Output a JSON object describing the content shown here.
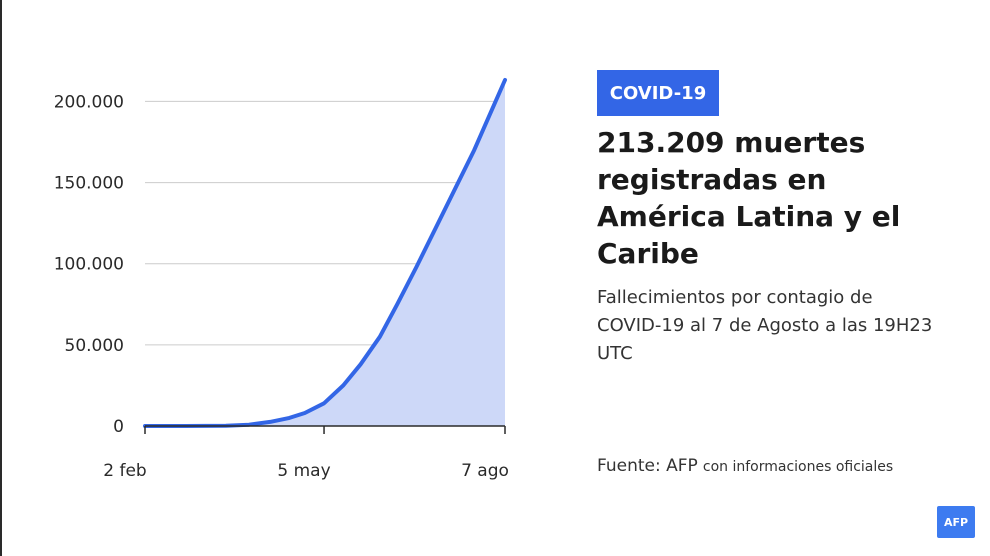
{
  "badge": "COVID-19",
  "headline": "213.209 muertes registradas en América Latina y el Caribe",
  "subtitle": "Fallecimientos por contagio de COVID-19 al 7 de Agosto a las 19H23 UTC",
  "source": {
    "label": "Fuente: AFP",
    "detail": "con informaciones oficiales"
  },
  "logo": "AFP",
  "colors": {
    "line": "#3366e6",
    "fill": "#cdd8f8",
    "badge": "#3366e6",
    "grid": "#cccccc",
    "axis": "#2a2a2a"
  },
  "chart_data": {
    "type": "area",
    "title": "",
    "xlabel": "",
    "ylabel": "",
    "ylim": [
      0,
      213209
    ],
    "y_ticks": [
      {
        "value": 0,
        "label": "0"
      },
      {
        "value": 50000,
        "label": "50.000"
      },
      {
        "value": 100000,
        "label": "100.000"
      },
      {
        "value": 150000,
        "label": "150.000"
      },
      {
        "value": 200000,
        "label": "200.000"
      }
    ],
    "x_ticks": [
      {
        "label": "2 feb",
        "date": "2020-02-02"
      },
      {
        "label": "5 may",
        "date": "2020-05-05"
      },
      {
        "label": "7 ago",
        "date": "2020-08-07"
      }
    ],
    "grid": true,
    "series": [
      {
        "name": "",
        "x": [
          "2020-02-02",
          "2020-02-23",
          "2020-03-15",
          "2020-03-27",
          "2020-04-07",
          "2020-04-17",
          "2020-04-25",
          "2020-05-05",
          "2020-05-15",
          "2020-05-24",
          "2020-06-03",
          "2020-06-12",
          "2020-06-22",
          "2020-07-02",
          "2020-07-12",
          "2020-07-22",
          "2020-07-29",
          "2020-08-07"
        ],
        "y": [
          0,
          0,
          200,
          800,
          2500,
          5000,
          8000,
          14000,
          25000,
          38000,
          55000,
          75000,
          98000,
          122000,
          146000,
          170000,
          189000,
          213209
        ]
      }
    ]
  }
}
